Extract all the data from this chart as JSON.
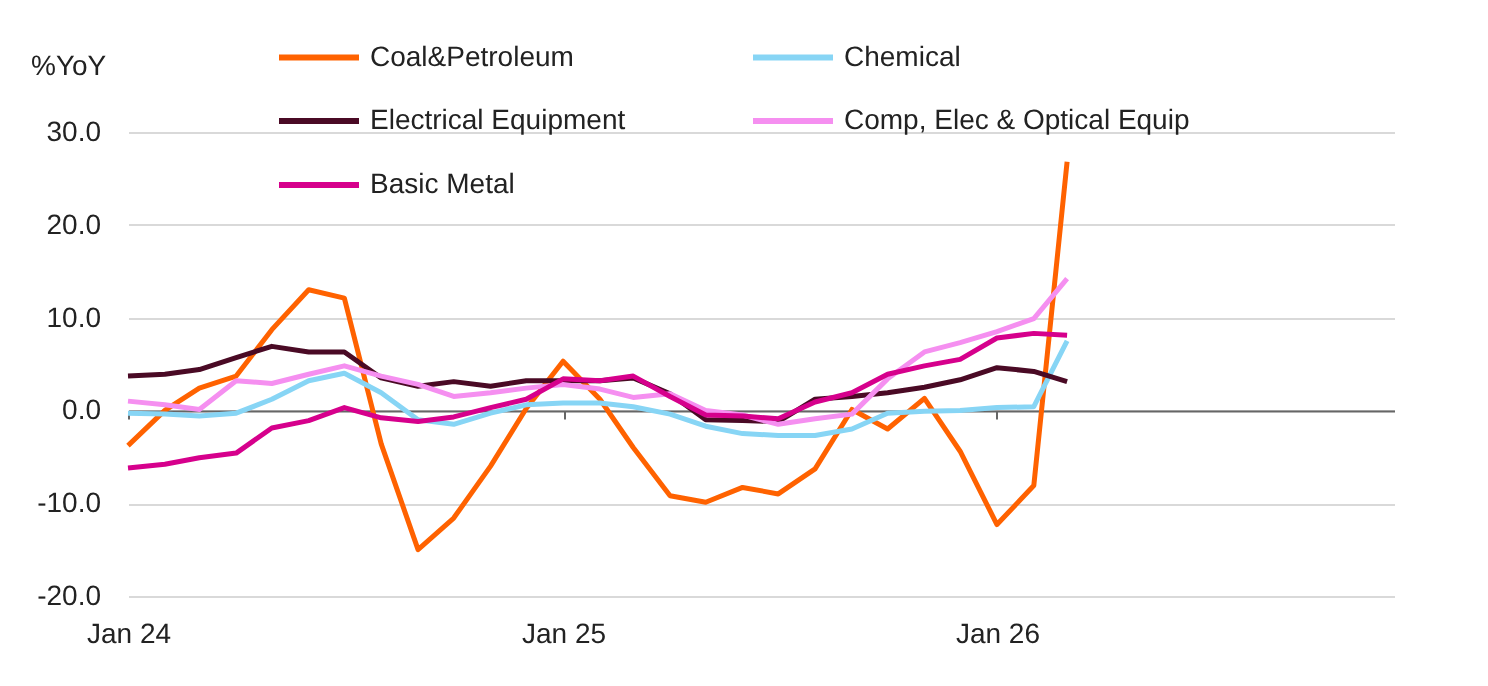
{
  "chart_data": {
    "type": "line",
    "ylabel": "%YoY",
    "x": [
      "2024-01",
      "2024-02",
      "2024-03",
      "2024-04",
      "2024-05",
      "2024-06",
      "2024-07",
      "2024-08",
      "2024-09",
      "2024-10",
      "2024-11",
      "2024-12",
      "2025-01",
      "2025-02",
      "2025-03",
      "2025-04",
      "2025-05",
      "2025-06",
      "2025-07",
      "2025-08",
      "2025-09",
      "2025-10",
      "2025-11",
      "2025-12",
      "2026-01",
      "2026-02",
      "2026-03"
    ],
    "series": [
      {
        "name": "Coal&Petroleum",
        "color": "#ff6200",
        "values": [
          -3.8,
          0.0,
          2.4,
          3.7,
          8.7,
          13.0,
          12.1,
          -3.6,
          -15.0,
          -11.6,
          -6.0,
          0.2,
          5.3,
          1.2,
          -4.0,
          -9.2,
          -9.9,
          -8.3,
          -9.0,
          -6.3,
          0.1,
          -2.0,
          1.3,
          -4.4,
          -12.3,
          -8.1,
          26.8
        ]
      },
      {
        "name": "Chemical",
        "color": "#87d5f5",
        "values": [
          -0.3,
          -0.4,
          -0.6,
          -0.3,
          1.2,
          3.2,
          4.0,
          1.9,
          -1.0,
          -1.5,
          -0.3,
          0.6,
          0.8,
          0.8,
          0.4,
          -0.4,
          -1.7,
          -2.5,
          -2.7,
          -2.7,
          -2.0,
          -0.3,
          -0.1,
          0.0,
          0.3,
          0.4,
          7.5
        ]
      },
      {
        "name": "Electrical Equipment",
        "color": "#4a0a25",
        "values": [
          3.7,
          3.9,
          4.4,
          5.7,
          6.9,
          6.3,
          6.3,
          3.5,
          2.6,
          3.1,
          2.6,
          3.2,
          3.2,
          3.2,
          3.5,
          1.8,
          -1.0,
          -1.1,
          -1.2,
          1.2,
          1.5,
          1.9,
          2.5,
          3.3,
          4.6,
          4.2,
          3.1
        ]
      },
      {
        "name": "Comp, Elec & Optical Equip",
        "color": "#f58ff0",
        "values": [
          1.0,
          0.6,
          0.1,
          3.2,
          2.9,
          3.9,
          4.8,
          3.7,
          2.8,
          1.5,
          1.9,
          2.4,
          2.8,
          2.3,
          1.4,
          1.8,
          0.0,
          -0.5,
          -1.5,
          -0.9,
          -0.4,
          3.4,
          6.3,
          7.3,
          8.5,
          9.9,
          14.2
        ]
      },
      {
        "name": "Basic Metal",
        "color": "#d6008c",
        "values": [
          -6.2,
          -5.8,
          -5.1,
          -4.6,
          -1.9,
          -1.1,
          0.3,
          -0.8,
          -1.2,
          -0.7,
          0.3,
          1.2,
          3.4,
          3.2,
          3.7,
          1.5,
          -0.5,
          -0.6,
          -0.9,
          0.9,
          1.9,
          3.9,
          4.8,
          5.5,
          7.8,
          8.3,
          8.1
        ]
      }
    ],
    "xlim": [
      "2024-01",
      "2026-12"
    ],
    "xticks": [
      {
        "value": "2024-01",
        "label": "Jan 24"
      },
      {
        "value": "2025-01",
        "label": "Jan 25"
      },
      {
        "value": "2026-01",
        "label": "Jan 26"
      }
    ],
    "ylim": [
      -20,
      30
    ],
    "yticks": [
      {
        "value": -20,
        "label": "-20.0"
      },
      {
        "value": -10,
        "label": "-10.0"
      },
      {
        "value": 0,
        "label": "0.0"
      },
      {
        "value": 10,
        "label": "10.0"
      },
      {
        "value": 20,
        "label": "20.0"
      },
      {
        "value": 30,
        "label": "30.0"
      }
    ],
    "grid": "y",
    "legend": "top",
    "marker": "none",
    "line_style": "solid"
  }
}
